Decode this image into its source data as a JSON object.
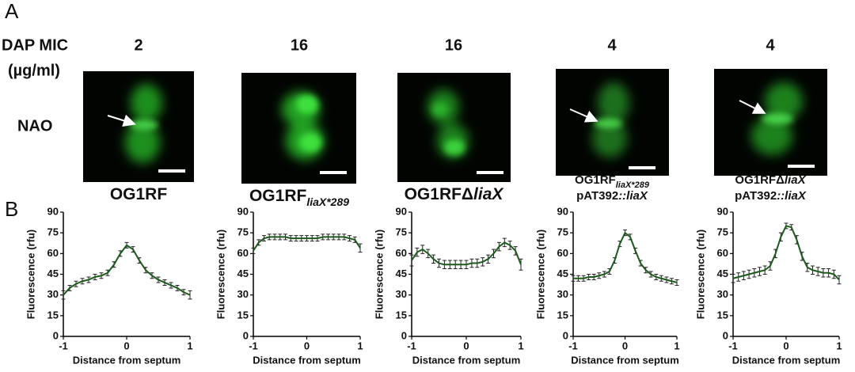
{
  "figure": {
    "panel_a": "A",
    "panel_b": "B",
    "mic_label": [
      "DAP MIC",
      "(µg/ml)"
    ],
    "stain": "NAO",
    "panels": [
      {
        "mic": 2,
        "label": [
          [
            {
              "text": "OG1RF",
              "style": "normal"
            }
          ]
        ]
      },
      {
        "mic": 16,
        "label": [
          [
            {
              "text": "OG1RF",
              "style": "normal"
            },
            {
              "text": "liaX*289",
              "style": "italic-sub"
            }
          ]
        ]
      },
      {
        "mic": 16,
        "label": [
          [
            {
              "text": "OG1RFΔ",
              "style": "normal"
            },
            {
              "text": "liaX",
              "style": "italic"
            }
          ]
        ]
      },
      {
        "mic": 4,
        "label": [
          [
            {
              "text": "OG1RF",
              "style": "normal"
            },
            {
              "text": "liaX*289",
              "style": "italic-sub"
            }
          ],
          [
            {
              "text": "pAT392",
              "style": "normal"
            },
            {
              "text": "::liaX",
              "style": "italic"
            }
          ]
        ]
      },
      {
        "mic": 4,
        "label": [
          [
            {
              "text": "OG1RFΔ",
              "style": "normal"
            },
            {
              "text": "liaX",
              "style": "italic"
            }
          ],
          [
            {
              "text": "pAT392",
              "style": "normal"
            },
            {
              "text": "::liaX",
              "style": "italic"
            }
          ]
        ]
      }
    ]
  },
  "chart_data": [
    {
      "type": "line",
      "ylabel": "Fluorescence (rfu)",
      "xlabel": "Distance from septum",
      "color": "#1e5a1e",
      "x": [
        -1,
        -0.9,
        -0.8,
        -0.7,
        -0.6,
        -0.5,
        -0.4,
        -0.3,
        -0.2,
        -0.1,
        0,
        0.1,
        0.2,
        0.3,
        0.4,
        0.5,
        0.6,
        0.7,
        0.8,
        0.9,
        1
      ],
      "values": [
        30,
        35,
        38,
        40,
        41,
        43,
        44,
        46,
        52,
        60,
        66,
        63,
        55,
        48,
        44,
        41,
        39,
        37,
        35,
        32,
        30
      ],
      "errors": [
        3,
        2,
        2,
        2,
        2,
        2,
        2,
        2,
        2,
        2,
        2,
        2,
        2,
        2,
        2,
        2,
        2,
        2,
        2,
        2,
        3
      ],
      "xlim": [
        -1,
        1
      ],
      "xticks": [
        -1,
        0,
        1
      ],
      "ylim": [
        0,
        90
      ],
      "yticks": [
        0,
        15,
        30,
        45,
        60,
        75,
        90
      ]
    },
    {
      "type": "line",
      "ylabel": "Fluorescence (rfu)",
      "xlabel": "Distance from septum",
      "color": "#1e5a1e",
      "x": [
        -1,
        -0.9,
        -0.8,
        -0.7,
        -0.6,
        -0.5,
        -0.4,
        -0.3,
        -0.2,
        -0.1,
        0,
        0.1,
        0.2,
        0.3,
        0.4,
        0.5,
        0.6,
        0.7,
        0.8,
        0.9,
        1
      ],
      "values": [
        62,
        68,
        71,
        72,
        72,
        72,
        72,
        71,
        71,
        71,
        71,
        71,
        71,
        72,
        72,
        72,
        72,
        72,
        71,
        70,
        64
      ],
      "errors": [
        2,
        2,
        2,
        2,
        2,
        2,
        2,
        2,
        2,
        2,
        2,
        2,
        2,
        2,
        2,
        2,
        2,
        2,
        2,
        2,
        3
      ],
      "xlim": [
        -1,
        1
      ],
      "xticks": [
        -1,
        0,
        1
      ],
      "ylim": [
        0,
        90
      ],
      "yticks": [
        0,
        15,
        30,
        45,
        60,
        75,
        90
      ]
    },
    {
      "type": "line",
      "ylabel": "Fluorescence (rfu)",
      "xlabel": "Distance from septum",
      "color": "#1e5a1e",
      "x": [
        -1,
        -0.9,
        -0.8,
        -0.7,
        -0.6,
        -0.5,
        -0.4,
        -0.3,
        -0.2,
        -0.1,
        0,
        0.1,
        0.2,
        0.3,
        0.4,
        0.5,
        0.6,
        0.7,
        0.8,
        0.9,
        1
      ],
      "values": [
        55,
        61,
        63,
        60,
        56,
        53,
        52,
        52,
        52,
        52,
        52,
        53,
        53,
        54,
        56,
        60,
        65,
        68,
        66,
        62,
        52
      ],
      "errors": [
        4,
        3,
        3,
        3,
        3,
        3,
        3,
        3,
        3,
        3,
        3,
        3,
        3,
        3,
        3,
        3,
        3,
        3,
        3,
        3,
        4
      ],
      "xlim": [
        -1,
        1
      ],
      "xticks": [
        -1,
        0,
        1
      ],
      "ylim": [
        0,
        90
      ],
      "yticks": [
        0,
        15,
        30,
        45,
        60,
        75,
        90
      ]
    },
    {
      "type": "line",
      "ylabel": "Fluorescence (rfu)",
      "xlabel": "Distance from septum",
      "color": "#1e5a1e",
      "x": [
        -1,
        -0.9,
        -0.8,
        -0.7,
        -0.6,
        -0.5,
        -0.4,
        -0.3,
        -0.2,
        -0.1,
        0,
        0.1,
        0.2,
        0.3,
        0.4,
        0.5,
        0.6,
        0.7,
        0.8,
        0.9,
        1
      ],
      "values": [
        42,
        42,
        42,
        43,
        43,
        44,
        45,
        47,
        55,
        67,
        75,
        72,
        62,
        53,
        48,
        45,
        43,
        42,
        41,
        40,
        39
      ],
      "errors": [
        2,
        2,
        2,
        2,
        2,
        2,
        2,
        2,
        2,
        2,
        2,
        2,
        2,
        2,
        2,
        2,
        2,
        2,
        2,
        2,
        2
      ],
      "xlim": [
        -1,
        1
      ],
      "xticks": [
        -1,
        0,
        1
      ],
      "ylim": [
        0,
        90
      ],
      "yticks": [
        0,
        15,
        30,
        45,
        60,
        75,
        90
      ]
    },
    {
      "type": "line",
      "ylabel": "Fluorescence (rfu)",
      "xlabel": "Distance from septum",
      "color": "#1e5a1e",
      "x": [
        -1,
        -0.9,
        -0.8,
        -0.7,
        -0.6,
        -0.5,
        -0.4,
        -0.3,
        -0.2,
        -0.1,
        0,
        0.1,
        0.2,
        0.3,
        0.4,
        0.5,
        0.6,
        0.7,
        0.8,
        0.9,
        1
      ],
      "values": [
        42,
        43,
        44,
        45,
        46,
        47,
        48,
        51,
        60,
        72,
        80,
        79,
        70,
        58,
        50,
        48,
        47,
        46,
        46,
        45,
        41
      ],
      "errors": [
        3,
        3,
        3,
        3,
        3,
        3,
        3,
        3,
        3,
        3,
        2,
        2,
        3,
        3,
        3,
        3,
        3,
        3,
        3,
        3,
        3
      ],
      "xlim": [
        -1,
        1
      ],
      "xticks": [
        -1,
        0,
        1
      ],
      "ylim": [
        0,
        90
      ],
      "yticks": [
        0,
        15,
        30,
        45,
        60,
        75,
        90
      ]
    }
  ]
}
